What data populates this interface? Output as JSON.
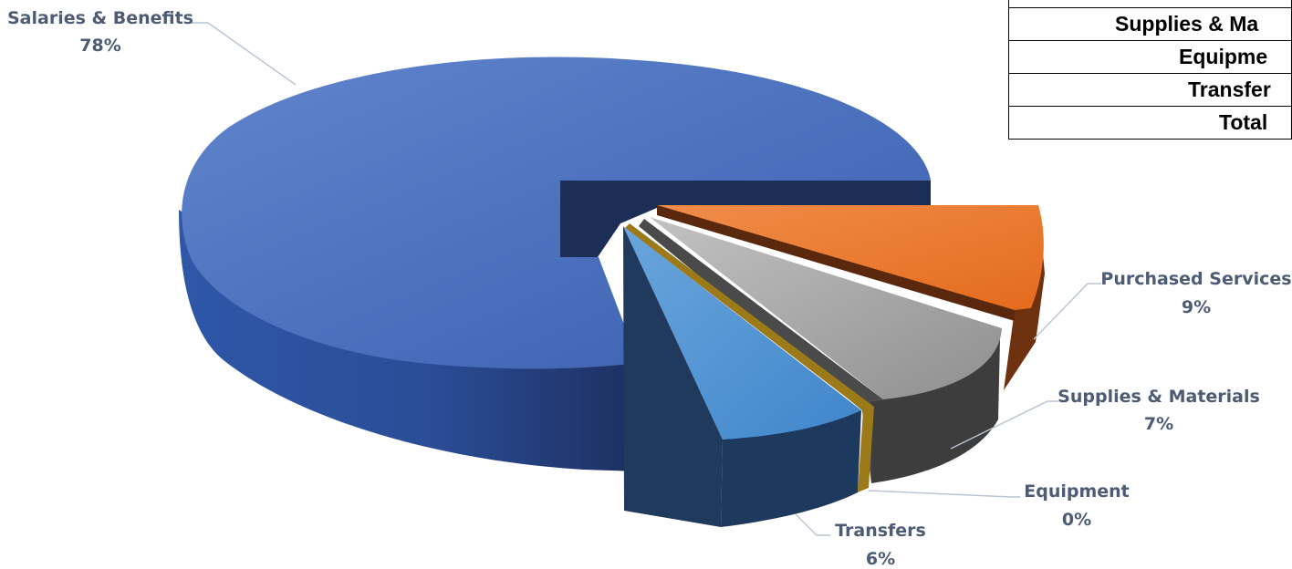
{
  "chart_data": {
    "type": "pie",
    "style": "3d-exploded",
    "slices": [
      {
        "label": "Salaries & Benefits",
        "percent_label": "78%",
        "value": 78,
        "color": "#4469b4"
      },
      {
        "label": "Purchased Services",
        "percent_label": "9%",
        "value": 9,
        "color": "#ee7b2f"
      },
      {
        "label": "Supplies & Materials",
        "percent_label": "7%",
        "value": 7,
        "color": "#a5a5a5"
      },
      {
        "label": "Equipment",
        "percent_label": "0%",
        "value": 0,
        "color": "#c79a22"
      },
      {
        "label": "Transfers",
        "percent_label": "6%",
        "value": 6,
        "color": "#5b9bd5"
      }
    ]
  },
  "table": {
    "rows": [
      "Supplies & Ma",
      "Equipme",
      "Transfer",
      "Total"
    ]
  }
}
